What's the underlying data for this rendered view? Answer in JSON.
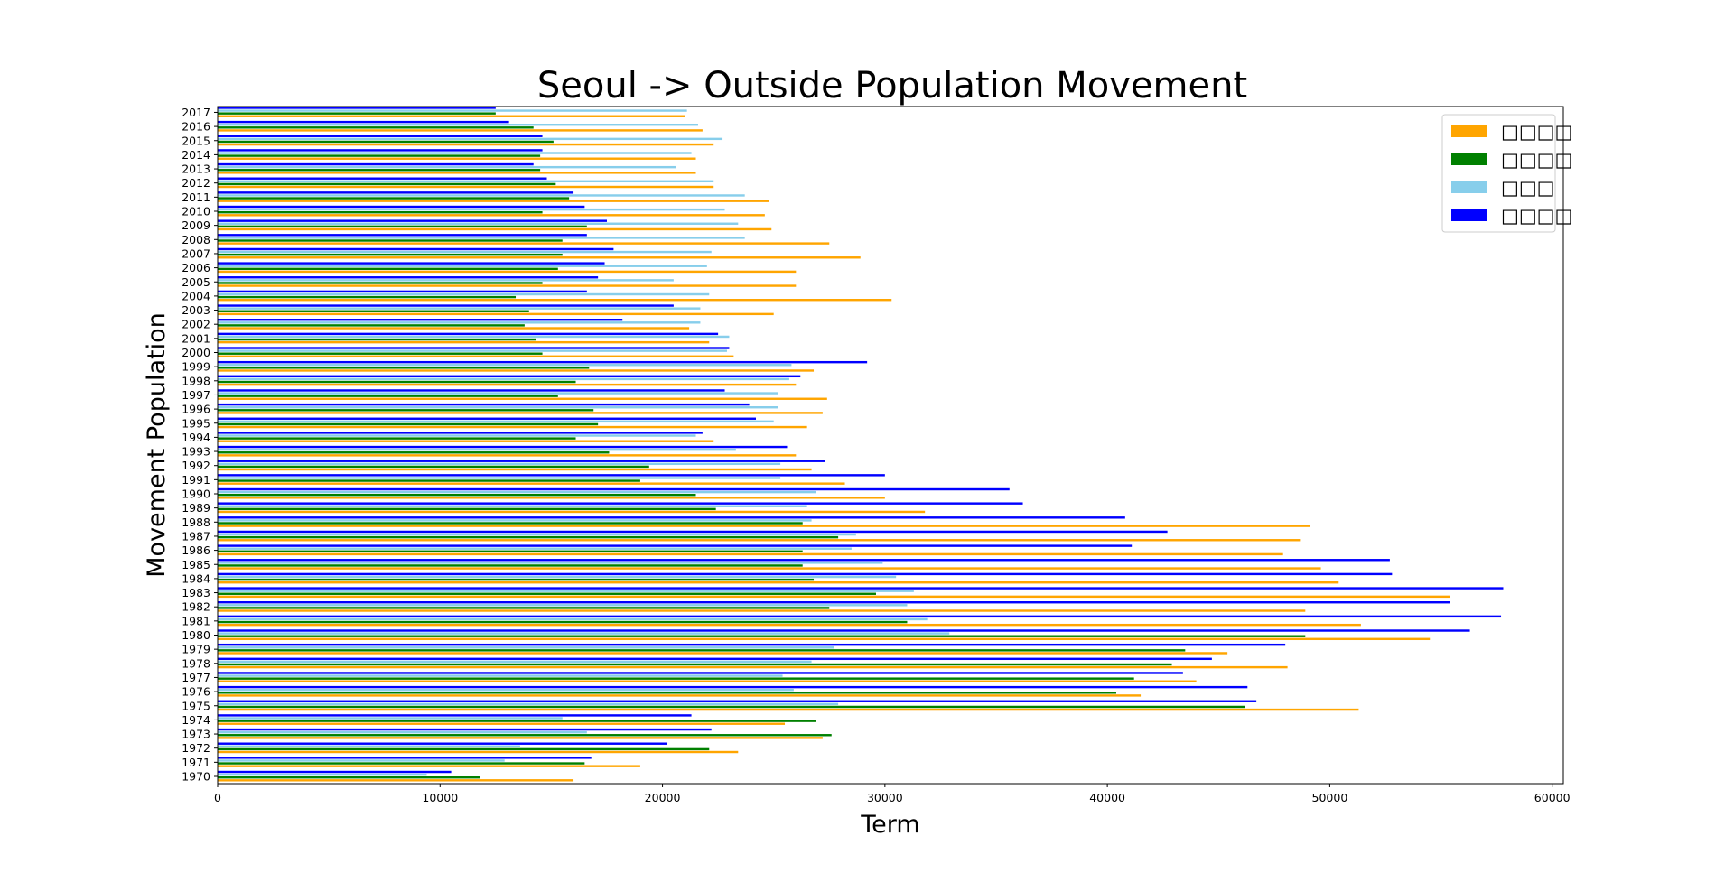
{
  "chart_data": {
    "type": "bar",
    "orientation": "horizontal",
    "title": "Seoul -> Outside Population Movement",
    "xlabel": "Term",
    "ylabel": "Movement Population",
    "xlim": [
      0,
      60500
    ],
    "xticks": [
      0,
      10000,
      20000,
      30000,
      40000,
      50000,
      60000
    ],
    "grid": false,
    "legend_position": "top-right",
    "categories": [
      "1970",
      "1971",
      "1972",
      "1973",
      "1974",
      "1975",
      "1976",
      "1977",
      "1978",
      "1979",
      "1980",
      "1981",
      "1982",
      "1983",
      "1984",
      "1985",
      "1986",
      "1987",
      "1988",
      "1989",
      "1990",
      "1991",
      "1992",
      "1993",
      "1994",
      "1995",
      "1996",
      "1997",
      "1998",
      "1999",
      "2000",
      "2001",
      "2002",
      "2003",
      "2004",
      "2005",
      "2006",
      "2007",
      "2008",
      "2009",
      "2010",
      "2011",
      "2012",
      "2013",
      "2014",
      "2015",
      "2016",
      "2017"
    ],
    "series": [
      {
        "name": "□□□□",
        "color": "#ffa500",
        "values": [
          16000,
          19000,
          23400,
          27200,
          25500,
          51300,
          41500,
          44000,
          48100,
          45400,
          54500,
          51400,
          48900,
          55400,
          50400,
          49600,
          47900,
          48700,
          49100,
          31800,
          30000,
          28200,
          26700,
          26000,
          22300,
          26500,
          27200,
          27400,
          26000,
          26800,
          23200,
          22100,
          21200,
          25000,
          30300,
          26000,
          26000,
          28900,
          27500,
          24900,
          24600,
          24800,
          22300,
          21500,
          21500,
          22300,
          21800,
          21000
        ]
      },
      {
        "name": "□□□□",
        "color": "#008000",
        "values": [
          11800,
          16500,
          22100,
          27600,
          26900,
          46200,
          40400,
          41200,
          42900,
          43500,
          48900,
          31000,
          27500,
          29600,
          26800,
          26300,
          26300,
          27900,
          26300,
          22400,
          21500,
          19000,
          19400,
          17600,
          16100,
          17100,
          16900,
          15300,
          16100,
          16700,
          14600,
          14300,
          13800,
          14000,
          13400,
          14600,
          15300,
          15500,
          15500,
          16600,
          14600,
          15800,
          15200,
          14500,
          14500,
          15100,
          14200,
          12500
        ]
      },
      {
        "name": "□□□",
        "color": "#87ceeb",
        "values": [
          9400,
          12900,
          13600,
          16600,
          15500,
          27900,
          25900,
          25400,
          26700,
          27700,
          32900,
          31900,
          31000,
          31300,
          30500,
          29900,
          28500,
          28700,
          26700,
          26500,
          26900,
          25300,
          25300,
          23300,
          21500,
          25000,
          25200,
          25200,
          25700,
          25800,
          22900,
          23000,
          21700,
          21700,
          22100,
          20500,
          22000,
          22200,
          23700,
          23400,
          22800,
          23700,
          22300,
          20600,
          21300,
          22700,
          21600,
          21100
        ]
      },
      {
        "name": "□□□□",
        "color": "#0000ff",
        "values": [
          10500,
          16800,
          20200,
          22200,
          21300,
          46700,
          46300,
          43400,
          44700,
          48000,
          56300,
          57700,
          55400,
          57800,
          52800,
          52700,
          41100,
          42700,
          40800,
          36200,
          35600,
          30000,
          27300,
          25600,
          21800,
          24200,
          23900,
          22800,
          26200,
          29200,
          23000,
          22500,
          18200,
          20500,
          16600,
          17100,
          17400,
          17800,
          16600,
          17500,
          16500,
          16000,
          14800,
          14200,
          14600,
          14600,
          13100,
          12500
        ]
      }
    ]
  }
}
